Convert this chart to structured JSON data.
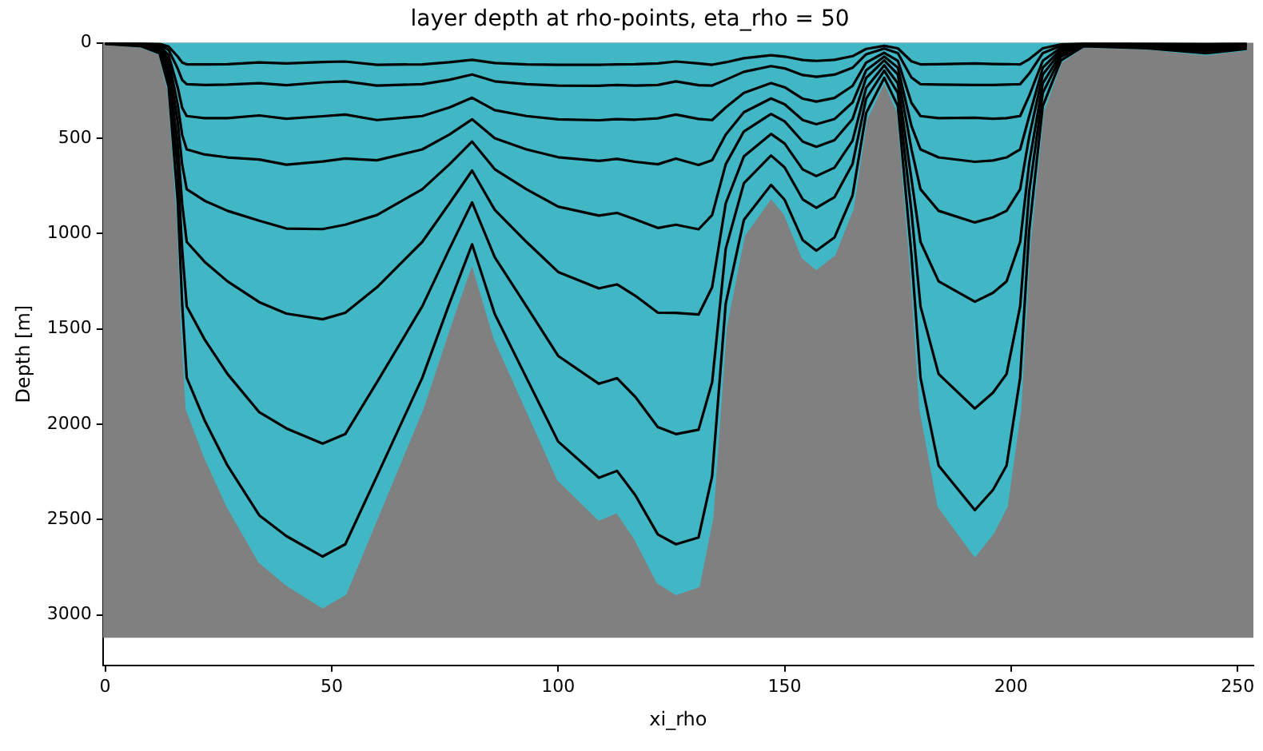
{
  "chart_data": {
    "type": "line",
    "title": "layer depth at rho-points, eta_rho = 50",
    "xlabel": "xi_rho",
    "ylabel": "Depth [m]",
    "x": [
      0,
      8,
      12,
      14,
      16,
      17,
      18,
      22,
      27,
      34,
      40,
      48,
      53,
      60,
      70,
      76,
      81,
      86,
      93,
      100,
      109,
      113,
      117,
      122,
      126,
      131,
      134,
      137,
      141,
      147,
      150,
      154,
      157,
      161,
      165,
      168,
      172,
      175,
      178,
      180,
      184,
      192,
      196,
      199,
      202,
      204,
      207,
      211,
      216,
      230,
      243,
      252
    ],
    "series": [
      {
        "type": "area",
        "color": "#41b6c4",
        "values": [
          5,
          20,
          60,
          250,
          900,
          1500,
          1920,
          2170,
          2430,
          2720,
          2840,
          2960,
          2890,
          2490,
          1920,
          1490,
          1150,
          1550,
          1920,
          2290,
          2500,
          2460,
          2600,
          2830,
          2890,
          2850,
          2490,
          1490,
          1010,
          810,
          895,
          1125,
          1185,
          1110,
          870,
          400,
          200,
          360,
          1210,
          1920,
          2430,
          2690,
          2570,
          2430,
          1920,
          1070,
          360,
          100,
          20,
          30,
          60,
          35
        ]
      },
      {
        "type": "line",
        "color": "#000000",
        "values": [
          5,
          18,
          55,
          230,
          828,
          1376,
          1757,
          1983,
          2217,
          2478,
          2587,
          2694,
          2630,
          2272,
          1757,
          1367,
          1057,
          1422,
          1757,
          2091,
          2281,
          2245,
          2371,
          2578,
          2630,
          2594,
          2272,
          1367,
          929,
          745,
          823,
          1035,
          1090,
          1021,
          800,
          368,
          184,
          331,
          1113,
          1757,
          2217,
          2451,
          2345,
          2217,
          1757,
          984,
          331,
          92,
          18,
          28,
          55,
          32
        ]
      },
      {
        "type": "line",
        "color": "#000000",
        "values": [
          4,
          15,
          44,
          183,
          657,
          1088,
          1382,
          1558,
          1737,
          1937,
          2022,
          2102,
          2052,
          1780,
          1382,
          1080,
          837,
          1124,
          1382,
          1642,
          1788,
          1759,
          1856,
          2015,
          2052,
          2029,
          1780,
          1080,
          737,
          591,
          653,
          821,
          865,
          810,
          635,
          292,
          146,
          263,
          883,
          1382,
          1737,
          1918,
          1835,
          1737,
          1382,
          781,
          263,
          73,
          15,
          22,
          44,
          26
        ]
      },
      {
        "type": "line",
        "color": "#000000",
        "values": [
          3,
          12,
          35,
          148,
          531,
          848,
          1044,
          1150,
          1251,
          1360,
          1420,
          1450,
          1416,
          1282,
          1044,
          842,
          670,
          876,
          1044,
          1202,
          1288,
          1267,
          1326,
          1415,
          1416,
          1425,
          1282,
          842,
          596,
          478,
          528,
          664,
          699,
          655,
          513,
          236,
          118,
          212,
          714,
          1044,
          1251,
          1358,
          1311,
          1251,
          1044,
          631,
          212,
          59,
          12,
          18,
          35,
          21
        ]
      },
      {
        "type": "line",
        "color": "#000000",
        "values": [
          2,
          9,
          28,
          115,
          414,
          641,
          768,
          829,
          881,
          933,
          974,
          977,
          954,
          903,
          768,
          637,
          518,
          663,
          768,
          859,
          906,
          892,
          926,
          971,
          954,
          978,
          903,
          637,
          465,
          373,
          412,
          518,
          545,
          511,
          400,
          184,
          92,
          166,
          557,
          768,
          881,
          942,
          915,
          881,
          768,
          492,
          166,
          46,
          9,
          14,
          28,
          16
        ]
      },
      {
        "type": "line",
        "color": "#000000",
        "values": [
          2,
          7,
          22,
          90,
          324,
          484,
          559,
          586,
          601,
          612,
          639,
          622,
          607,
          616,
          559,
          481,
          401,
          500,
          559,
          600,
          619,
          609,
          624,
          637,
          607,
          641,
          616,
          481,
          364,
          292,
          322,
          405,
          427,
          400,
          313,
          144,
          72,
          130,
          436,
          559,
          601,
          624,
          617,
          601,
          559,
          385,
          130,
          36,
          7,
          11,
          22,
          13
        ]
      },
      {
        "type": "line",
        "color": "#000000",
        "values": [
          1,
          5,
          16,
          65,
          234,
          341,
          384,
          395,
          395,
          381,
          398,
          385,
          376,
          405,
          384,
          339,
          288,
          353,
          384,
          401,
          406,
          400,
          403,
          396,
          376,
          399,
          405,
          339,
          263,
          211,
          233,
          293,
          308,
          289,
          226,
          104,
          52,
          94,
          315,
          384,
          395,
          393,
          398,
          395,
          384,
          278,
          94,
          26,
          5,
          8,
          16,
          9
        ]
      },
      {
        "type": "line",
        "color": "#000000",
        "values": [
          1,
          3,
          9,
          38,
          135,
          195,
          217,
          221,
          219,
          212,
          222,
          207,
          202,
          224,
          217,
          194,
          166,
          202,
          217,
          224,
          225,
          221,
          224,
          221,
          202,
          222,
          224,
          194,
          152,
          122,
          134,
          169,
          178,
          167,
          131,
          60,
          30,
          54,
          182,
          217,
          219,
          221,
          221,
          219,
          217,
          161,
          54,
          15,
          3,
          5,
          9,
          5
        ]
      },
      {
        "type": "line",
        "color": "#000000",
        "values": [
          0,
          2,
          5,
          20,
          72,
          103,
          113,
          113,
          112,
          103,
          108,
          101,
          98,
          115,
          113,
          102,
          89,
          106,
          113,
          115,
          115,
          113,
          112,
          108,
          98,
          108,
          115,
          102,
          81,
          65,
          72,
          90,
          95,
          89,
          70,
          32,
          16,
          29,
          97,
          113,
          112,
          108,
          111,
          112,
          113,
          86,
          29,
          8,
          2,
          2,
          5,
          3
        ]
      }
    ],
    "bands": [
      {
        "axis": "y",
        "from": 0,
        "to": 3120,
        "color": "#808080"
      }
    ],
    "xlim": [
      -0.5,
      253.5
    ],
    "xticks": [
      0,
      50,
      100,
      150,
      200,
      250
    ],
    "ylim": [
      3265,
      0
    ],
    "yticks": [
      0,
      500,
      1000,
      1500,
      2000,
      2500,
      3000
    ],
    "marker": "none",
    "line_style": "solid",
    "grid": false
  }
}
